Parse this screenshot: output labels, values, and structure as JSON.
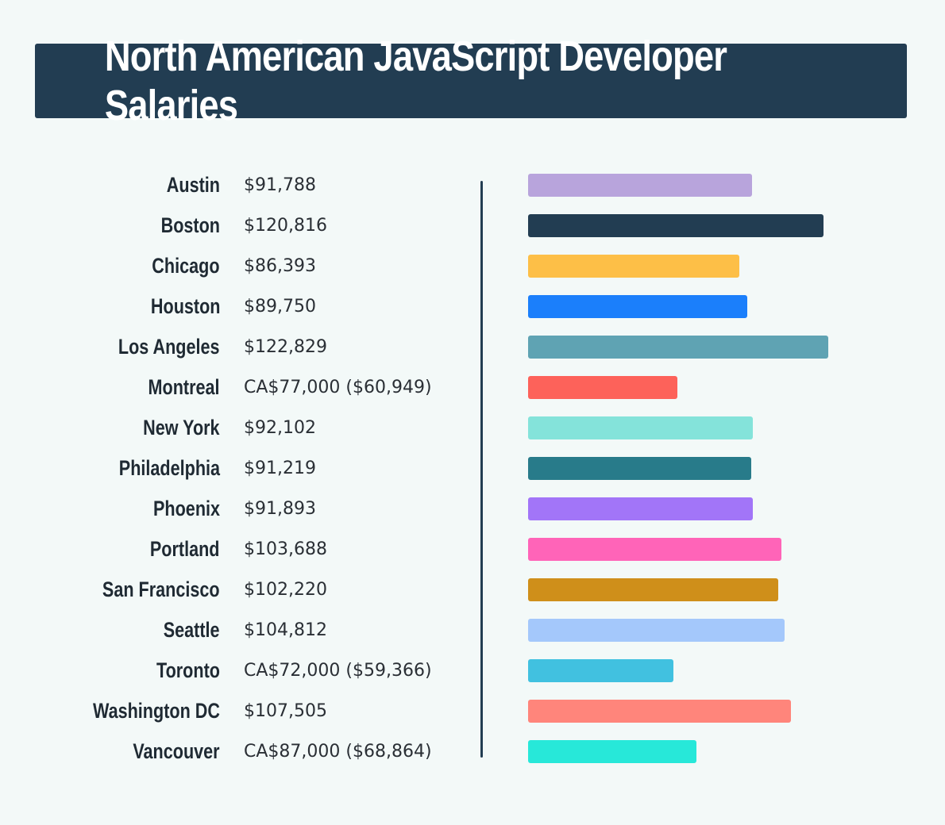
{
  "chart_data": {
    "type": "bar",
    "orientation": "horizontal",
    "title": "North American JavaScript Developer Salaries",
    "categories": [
      "Austin",
      "Boston",
      "Chicago",
      "Houston",
      "Los Angeles",
      "Montreal",
      "New York",
      "Philadelphia",
      "Phoenix",
      "Portland",
      "San Francisco",
      "Seattle",
      "Toronto",
      "Washington DC",
      "Vancouver"
    ],
    "labels": [
      "$91,788",
      "$120,816",
      "$86,393",
      "$89,750",
      "$122,829",
      "CA$77,000 ($60,949)",
      "$92,102",
      "$91,219",
      "$91,893",
      "$103,688",
      "$102,220",
      "$104,812",
      "CA$72,000 ($59,366)",
      "$107,505",
      "CA$87,000 ($68,864)"
    ],
    "values": [
      91788,
      120816,
      86393,
      89750,
      122829,
      60949,
      92102,
      91219,
      91893,
      103688,
      102220,
      104812,
      59366,
      107505,
      68864
    ],
    "colors": [
      "#b8a4dc",
      "#223d52",
      "#fdbf47",
      "#1b7ffb",
      "#5fa3b3",
      "#fd625a",
      "#84e3da",
      "#287b8a",
      "#a275f8",
      "#ff64b8",
      "#cf8f1a",
      "#a4c8fb",
      "#41c1e0",
      "#ff857b",
      "#27e8d9"
    ],
    "xlim": [
      0,
      122829
    ],
    "grid": false
  }
}
